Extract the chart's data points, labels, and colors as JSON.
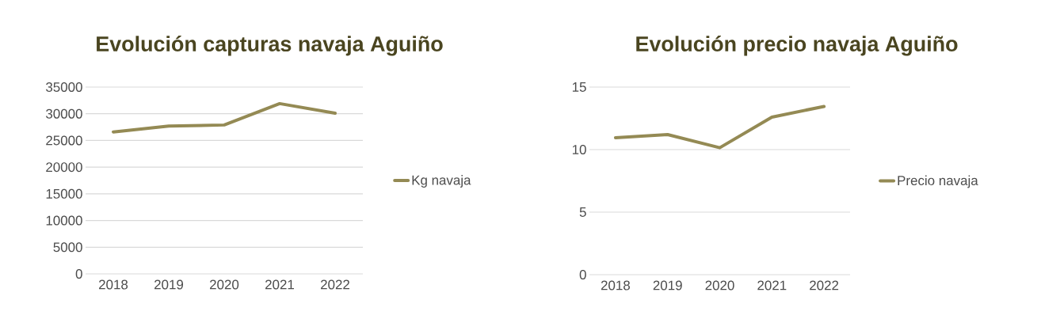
{
  "chart_data": [
    {
      "type": "line",
      "title": "Evolución capturas navaja Aguiño",
      "categories": [
        "2018",
        "2019",
        "2020",
        "2021",
        "2022"
      ],
      "series": [
        {
          "name": "Kg navaja",
          "color": "#948a54",
          "values": [
            26600,
            27700,
            27900,
            31900,
            30100
          ]
        }
      ],
      "ylim": [
        0,
        35000
      ],
      "yticks": [
        0,
        5000,
        10000,
        15000,
        20000,
        25000,
        30000,
        35000
      ],
      "grid": "y",
      "legend": "right",
      "marker": "none",
      "line_style": "solid"
    },
    {
      "type": "line",
      "title": "Evolución precio navaja Aguiño",
      "categories": [
        "2018",
        "2019",
        "2020",
        "2021",
        "2022"
      ],
      "series": [
        {
          "name": "Precio navaja",
          "color": "#948a54",
          "values": [
            10.95,
            11.2,
            10.15,
            12.6,
            13.45
          ]
        }
      ],
      "ylim": [
        0,
        15
      ],
      "yticks": [
        0,
        5,
        10,
        15
      ],
      "grid": "y",
      "legend": "right",
      "marker": "none",
      "line_style": "solid"
    }
  ]
}
